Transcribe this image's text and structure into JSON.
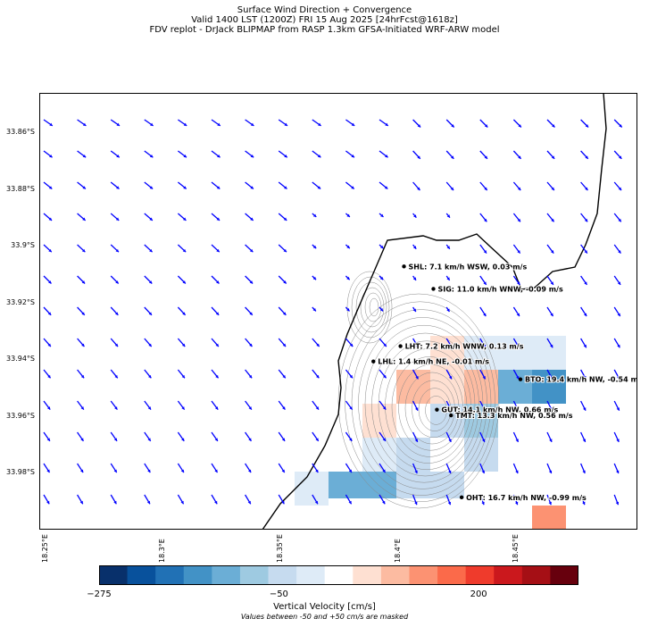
{
  "titles": {
    "line1": "Surface Wind Direction + Convergence",
    "line2": "Valid 1400 LST (1200Z) FRI 15 Aug 2025 [24hrFcst@1618z]",
    "line3": "FDV replot - DrJack BLIPMAP from RASP 1.3km GFSA-Initiated WRF-ARW model"
  },
  "chart_data": {
    "type": "map",
    "lat_ticks": [
      "33.86°S",
      "33.88°S",
      "33.9°S",
      "33.92°S",
      "33.94°S",
      "33.96°S",
      "33.98°S"
    ],
    "lat_values": [
      -33.86,
      -33.88,
      -33.9,
      -33.92,
      -33.94,
      -33.96,
      -33.98
    ],
    "lon_ticks": [
      "18.25°E",
      "18.3°E",
      "18.35°E",
      "18.4°E",
      "18.45°E"
    ],
    "lon_values": [
      18.25,
      18.3,
      18.35,
      18.4,
      18.45
    ],
    "xlim": [
      18.2475,
      18.5017
    ],
    "ylim": [
      -34.0,
      -33.846
    ],
    "arrow_color": "#0000ff",
    "stations": [
      {
        "label": "SHL: 7.1 km/h WSW, 0.03 m/s",
        "lon": 18.4025,
        "lat": -33.9072
      },
      {
        "label": "SIG: 11.0 km/h WNW, -0.09 m/s",
        "lon": 18.415,
        "lat": -33.9151
      },
      {
        "label": "LHT: 7.2 km/h WNW, 0.13 m/s",
        "lon": 18.401,
        "lat": -33.9353
      },
      {
        "label": "LHL: 1.4 km/h NE, -0.01 m/s",
        "lon": 18.3895,
        "lat": -33.9407
      },
      {
        "label": "BTO: 19.4 km/h NW, -0.54 m/s",
        "lon": 18.452,
        "lat": -33.947
      },
      {
        "label": "GUT: 14.1 km/h NW, 0.66 m/s",
        "lon": 18.4165,
        "lat": -33.9577
      },
      {
        "label": "TMT: 13.3 km/h NW, 0.56 m/s",
        "lon": 18.4225,
        "lat": -33.9597
      },
      {
        "label": "OHT: 16.7 km/h NW, -0.99 m/s",
        "lon": 18.427,
        "lat": -33.9886
      }
    ],
    "colorbar": {
      "label": "Vertical Velocity [cm/s]",
      "note": "Values between -50 and +50 cm/s are masked",
      "tick_labels": [
        "−275",
        "−50",
        "200"
      ],
      "tick_values": [
        -275,
        -50,
        200
      ],
      "range": [
        -275,
        325
      ],
      "colors": [
        "#08306b",
        "#08519c",
        "#2171b5",
        "#4292c6",
        "#6baed6",
        "#9ecae1",
        "#c6dbef",
        "#deebf7",
        "#ffffff",
        "#fee0d2",
        "#fcbba1",
        "#fc9272",
        "#fb6a4a",
        "#ef3b2c",
        "#cb181d",
        "#a50f15",
        "#67000d"
      ]
    }
  }
}
